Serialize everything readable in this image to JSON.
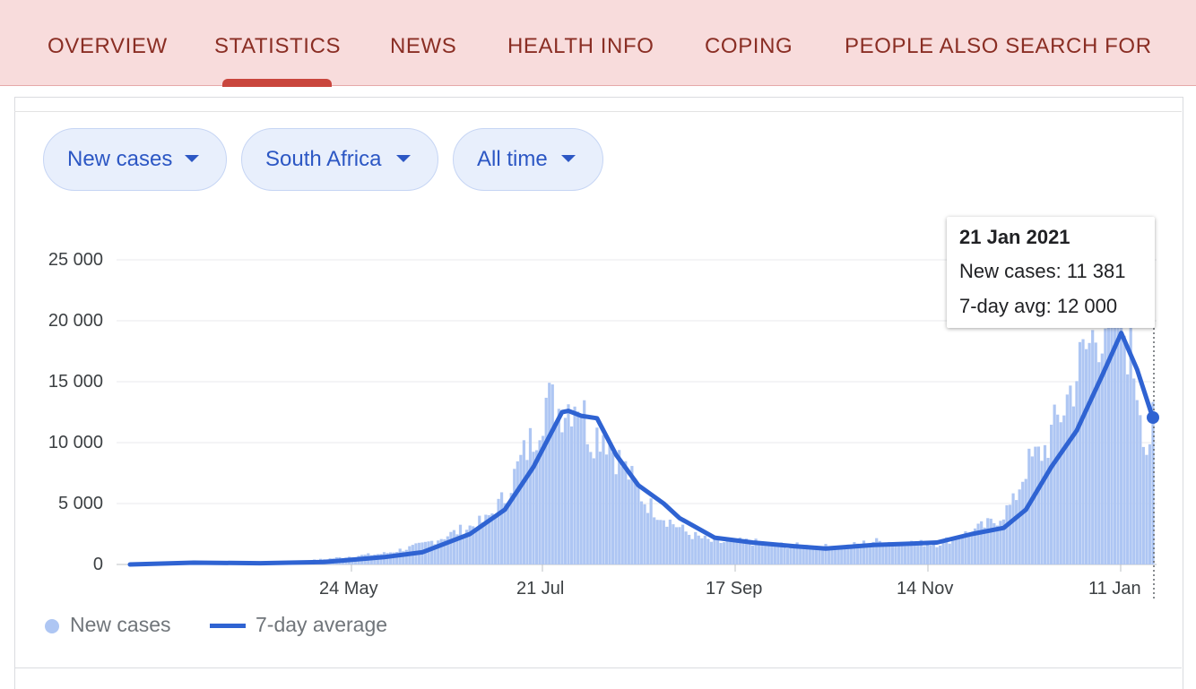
{
  "nav": {
    "tabs": [
      {
        "label": "OVERVIEW"
      },
      {
        "label": "STATISTICS",
        "active": true
      },
      {
        "label": "NEWS"
      },
      {
        "label": "HEALTH INFO"
      },
      {
        "label": "COPING"
      },
      {
        "label": "PEOPLE ALSO SEARCH FOR"
      }
    ]
  },
  "filters": {
    "metric": "New cases",
    "region": "South Africa",
    "range": "All time"
  },
  "tooltip": {
    "date": "21 Jan 2021",
    "new_cases": "New cases: 11 381",
    "avg": "7-day avg: 12 000"
  },
  "legend": {
    "bars": "New cases",
    "line": "7-day average"
  },
  "colors": {
    "nav_bg": "#f8dcdc",
    "nav_text": "#8a2e24",
    "accent": "#c9463d",
    "bar": "#aec6f3",
    "line": "#2f63d2"
  },
  "chart_data": {
    "type": "bar",
    "y_ticks": [
      "25 000",
      "20 000",
      "15 000",
      "10 000",
      "5 000",
      "0"
    ],
    "x_ticks": [
      "24 May",
      "21 Jul",
      "17 Sep",
      "14 Nov",
      "11 Jan"
    ],
    "ylim": [
      0,
      25000
    ],
    "xlim": [
      "2020-03-05",
      "2021-01-21"
    ],
    "grid": true,
    "legend_position": "bottom-left",
    "series": [
      {
        "name": "7-day average",
        "type": "line",
        "points": [
          [
            "2020-03-05",
            0
          ],
          [
            "2020-03-25",
            150
          ],
          [
            "2020-04-15",
            100
          ],
          [
            "2020-05-05",
            200
          ],
          [
            "2020-05-24",
            600
          ],
          [
            "2020-06-05",
            1000
          ],
          [
            "2020-06-20",
            2500
          ],
          [
            "2020-07-01",
            4500
          ],
          [
            "2020-07-10",
            8000
          ],
          [
            "2020-07-15",
            10500
          ],
          [
            "2020-07-19",
            12500
          ],
          [
            "2020-07-21",
            12600
          ],
          [
            "2020-07-25",
            12200
          ],
          [
            "2020-07-30",
            12000
          ],
          [
            "2020-08-05",
            9000
          ],
          [
            "2020-08-12",
            6500
          ],
          [
            "2020-08-20",
            5000
          ],
          [
            "2020-08-25",
            3800
          ],
          [
            "2020-09-05",
            2200
          ],
          [
            "2020-09-17",
            1800
          ],
          [
            "2020-09-30",
            1500
          ],
          [
            "2020-10-10",
            1300
          ],
          [
            "2020-10-25",
            1600
          ],
          [
            "2020-11-05",
            1700
          ],
          [
            "2020-11-14",
            1800
          ],
          [
            "2020-11-25",
            2500
          ],
          [
            "2020-12-05",
            3000
          ],
          [
            "2020-12-12",
            4500
          ],
          [
            "2020-12-20",
            8000
          ],
          [
            "2020-12-28",
            11000
          ],
          [
            "2021-01-05",
            15500
          ],
          [
            "2021-01-11",
            19000
          ],
          [
            "2021-01-16",
            16000
          ],
          [
            "2021-01-21",
            12000
          ]
        ]
      },
      {
        "name": "New cases",
        "type": "bar",
        "points": [
          [
            "2020-03-20",
            100
          ],
          [
            "2020-04-10",
            150
          ],
          [
            "2020-04-30",
            300
          ],
          [
            "2020-05-15",
            700
          ],
          [
            "2020-05-24",
            900
          ],
          [
            "2020-06-05",
            1600
          ],
          [
            "2020-06-15",
            2600
          ],
          [
            "2020-06-25",
            3600
          ],
          [
            "2020-07-01",
            5500
          ],
          [
            "2020-07-06",
            8500
          ],
          [
            "2020-07-10",
            10500
          ],
          [
            "2020-07-14",
            13500
          ],
          [
            "2020-07-18",
            12800
          ],
          [
            "2020-07-21",
            13200
          ],
          [
            "2020-07-24",
            13900
          ],
          [
            "2020-07-28",
            10500
          ],
          [
            "2020-08-01",
            11000
          ],
          [
            "2020-08-05",
            9000
          ],
          [
            "2020-08-10",
            7000
          ],
          [
            "2020-08-14",
            5200
          ],
          [
            "2020-08-20",
            3900
          ],
          [
            "2020-08-28",
            2500
          ],
          [
            "2020-09-05",
            1800
          ],
          [
            "2020-09-15",
            1900
          ],
          [
            "2020-09-25",
            1600
          ],
          [
            "2020-10-05",
            1500
          ],
          [
            "2020-10-15",
            1400
          ],
          [
            "2020-10-25",
            1900
          ],
          [
            "2020-11-05",
            1800
          ],
          [
            "2020-11-14",
            1700
          ],
          [
            "2020-11-24",
            2600
          ],
          [
            "2020-12-02",
            3500
          ],
          [
            "2020-12-08",
            5000
          ],
          [
            "2020-12-12",
            8000
          ],
          [
            "2020-12-18",
            9500
          ],
          [
            "2020-12-24",
            13000
          ],
          [
            "2020-12-30",
            17000
          ],
          [
            "2021-01-04",
            19500
          ],
          [
            "2021-01-08",
            21000
          ],
          [
            "2021-01-11",
            20000
          ],
          [
            "2021-01-14",
            17500
          ],
          [
            "2021-01-17",
            13500
          ],
          [
            "2021-01-19",
            9500
          ],
          [
            "2021-01-21",
            11381
          ]
        ]
      }
    ]
  }
}
